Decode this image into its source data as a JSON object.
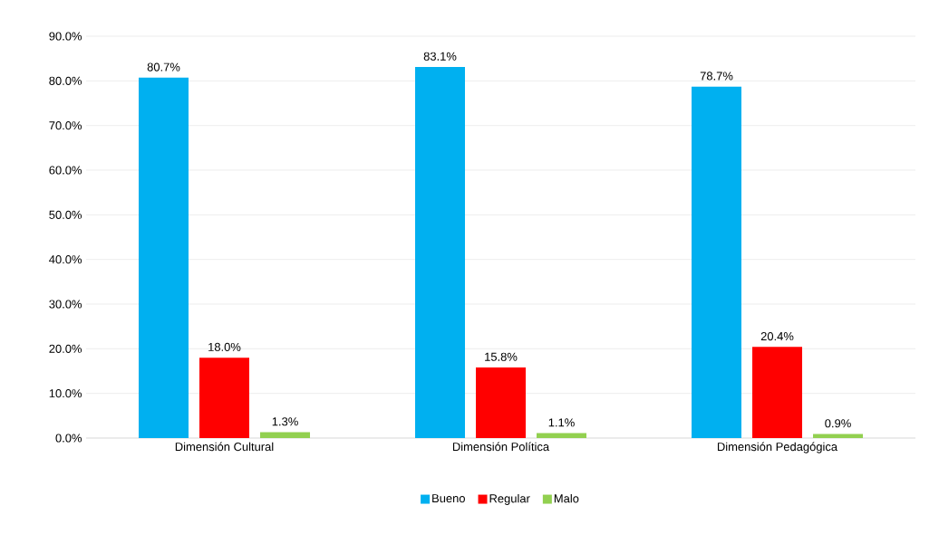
{
  "chart_data": {
    "type": "bar",
    "categories": [
      "Dimensión Cultural",
      "Dimensión Política",
      "Dimensión Pedagógica"
    ],
    "series": [
      {
        "name": "Bueno",
        "color": "#00b0f0",
        "values": [
          80.7,
          83.1,
          78.7
        ],
        "value_labels": [
          "80.7%",
          "83.1%",
          "78.7%"
        ]
      },
      {
        "name": "Regular",
        "color": "#ff0000",
        "values": [
          18.0,
          15.8,
          20.4
        ],
        "value_labels": [
          "18.0%",
          "15.8%",
          "20.4%"
        ]
      },
      {
        "name": "Malo",
        "color": "#92d050",
        "values": [
          1.3,
          1.1,
          0.9
        ],
        "value_labels": [
          "1.3%",
          "1.1%",
          "0.9%"
        ]
      }
    ],
    "ylim": [
      0,
      90
    ],
    "yticks": [
      {
        "value": 0,
        "label": "0.0%"
      },
      {
        "value": 10,
        "label": "10.0%"
      },
      {
        "value": 20,
        "label": "20.0%"
      },
      {
        "value": 30,
        "label": "30.0%"
      },
      {
        "value": 40,
        "label": "40.0%"
      },
      {
        "value": 50,
        "label": "50.0%"
      },
      {
        "value": 60,
        "label": "60.0%"
      },
      {
        "value": 70,
        "label": "70.0%"
      },
      {
        "value": 80,
        "label": "80.0%"
      },
      {
        "value": 90,
        "label": "90.0%"
      }
    ],
    "grid": "y",
    "legend": "bottom"
  }
}
